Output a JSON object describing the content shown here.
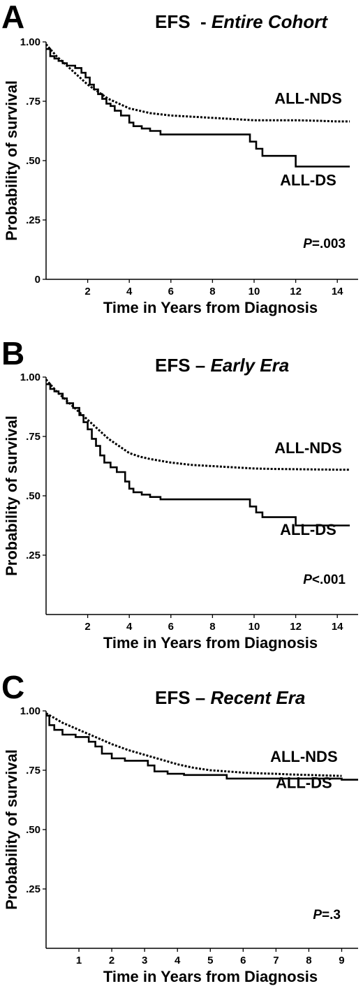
{
  "chart_data": [
    {
      "type": "line",
      "panel": "A",
      "title_prefix": "EFS  - ",
      "title_italic": "Entire Cohort",
      "xlabel": "Time in Years from Diagnosis",
      "ylabel": "Probability of survival",
      "xlim": [
        0,
        15
      ],
      "ylim": [
        0,
        1
      ],
      "x_ticks": [
        2,
        4,
        6,
        8,
        10,
        12,
        14
      ],
      "y_ticks": [
        0,
        0.25,
        0.5,
        0.75,
        1.0
      ],
      "y_tick_labels": [
        "0",
        ".25",
        ".50",
        ".75",
        "1.00"
      ],
      "p_prefix": "P",
      "p_rest": "=.003",
      "series": [
        {
          "name": "ALL-NDS",
          "style": "dotted",
          "label_x": 12.6,
          "label_y": 0.74,
          "x": [
            0,
            0.5,
            1,
            1.5,
            2,
            2.5,
            3,
            3.5,
            4,
            4.5,
            5,
            6,
            7,
            8,
            9,
            10,
            11,
            12,
            13,
            14,
            14.6
          ],
          "y": [
            0.99,
            0.94,
            0.9,
            0.86,
            0.82,
            0.79,
            0.76,
            0.74,
            0.72,
            0.71,
            0.7,
            0.69,
            0.685,
            0.68,
            0.675,
            0.67,
            0.67,
            0.67,
            0.668,
            0.665,
            0.665
          ]
        },
        {
          "name": "ALL-DS",
          "style": "solid",
          "label_x": 12.6,
          "label_y": 0.395,
          "step": true,
          "x": [
            0,
            0.2,
            0.4,
            0.6,
            0.8,
            1.0,
            1.4,
            1.7,
            1.9,
            2.1,
            2.3,
            2.5,
            2.7,
            2.9,
            3.1,
            3.3,
            3.6,
            4.0,
            4.2,
            4.6,
            5.0,
            5.5,
            9.8,
            10.1,
            10.4,
            12.0,
            14.6
          ],
          "y": [
            0.97,
            0.94,
            0.93,
            0.92,
            0.91,
            0.9,
            0.89,
            0.87,
            0.85,
            0.82,
            0.8,
            0.78,
            0.76,
            0.74,
            0.73,
            0.71,
            0.69,
            0.66,
            0.645,
            0.635,
            0.625,
            0.61,
            0.58,
            0.55,
            0.52,
            0.475,
            0.475
          ]
        }
      ]
    },
    {
      "type": "line",
      "panel": "B",
      "title_prefix": "EFS – ",
      "title_italic": "Early Era",
      "xlabel": "Time in Years from Diagnosis",
      "ylabel": "Probability of survival",
      "xlim": [
        0,
        15
      ],
      "ylim": [
        0,
        1
      ],
      "x_ticks": [
        2,
        4,
        6,
        8,
        10,
        12,
        14
      ],
      "y_ticks": [
        0.25,
        0.5,
        0.75,
        1.0
      ],
      "y_tick_labels": [
        ".25",
        ".50",
        ".75",
        "1.00"
      ],
      "p_prefix": "P",
      "p_rest": "<.001",
      "series": [
        {
          "name": "ALL-NDS",
          "style": "dotted",
          "label_x": 12.6,
          "label_y": 0.68,
          "x": [
            0,
            0.5,
            1,
            1.5,
            2,
            2.5,
            3,
            3.5,
            4,
            4.5,
            5,
            6,
            7,
            8,
            9,
            10,
            11,
            12,
            13,
            14,
            14.6
          ],
          "y": [
            0.99,
            0.94,
            0.9,
            0.86,
            0.82,
            0.78,
            0.74,
            0.71,
            0.68,
            0.665,
            0.655,
            0.64,
            0.63,
            0.625,
            0.62,
            0.615,
            0.613,
            0.612,
            0.611,
            0.61,
            0.61
          ]
        },
        {
          "name": "ALL-DS",
          "style": "solid",
          "label_x": 12.6,
          "label_y": 0.335,
          "step": true,
          "x": [
            0,
            0.2,
            0.4,
            0.6,
            0.8,
            1.0,
            1.3,
            1.6,
            1.8,
            2.0,
            2.2,
            2.4,
            2.6,
            2.8,
            3.1,
            3.4,
            3.8,
            4.0,
            4.2,
            4.6,
            5.0,
            5.5,
            9.8,
            10.1,
            10.4,
            12.0,
            14.6
          ],
          "y": [
            0.97,
            0.95,
            0.94,
            0.93,
            0.91,
            0.89,
            0.87,
            0.84,
            0.81,
            0.78,
            0.74,
            0.71,
            0.67,
            0.64,
            0.62,
            0.6,
            0.56,
            0.53,
            0.515,
            0.505,
            0.495,
            0.485,
            0.455,
            0.43,
            0.41,
            0.375,
            0.375
          ]
        }
      ]
    },
    {
      "type": "line",
      "panel": "C",
      "title_prefix": "EFS – ",
      "title_italic": "Recent Era",
      "xlabel": "Time in Years from Diagnosis",
      "ylabel": "Probability of survival",
      "xlim": [
        0,
        9.5
      ],
      "ylim": [
        0,
        1
      ],
      "x_ticks": [
        1,
        2,
        3,
        4,
        5,
        6,
        7,
        8,
        9
      ],
      "y_ticks": [
        0.25,
        0.5,
        0.75,
        1.0
      ],
      "y_tick_labels": [
        ".25",
        ".50",
        ".75",
        "1.00"
      ],
      "p_prefix": "P",
      "p_rest": "=.3",
      "series": [
        {
          "name": "ALL-NDS",
          "style": "dotted",
          "label_x": 7.85,
          "label_y": 0.785,
          "x": [
            0,
            0.5,
            1,
            1.5,
            2,
            2.5,
            3,
            3.5,
            4,
            4.5,
            5,
            5.5,
            6,
            6.5,
            7,
            7.5,
            8,
            8.5,
            9
          ],
          "y": [
            0.99,
            0.95,
            0.92,
            0.89,
            0.86,
            0.835,
            0.815,
            0.795,
            0.775,
            0.76,
            0.75,
            0.745,
            0.74,
            0.737,
            0.735,
            0.732,
            0.73,
            0.728,
            0.726
          ]
        },
        {
          "name": "ALL-DS",
          "style": "solid",
          "label_x": 7.85,
          "label_y": 0.675,
          "step": true,
          "x": [
            0,
            0.1,
            0.25,
            0.5,
            0.9,
            1.3,
            1.5,
            1.7,
            2.0,
            2.4,
            2.8,
            3.1,
            3.3,
            3.7,
            4.2,
            5.5,
            9.0,
            9.5
          ],
          "y": [
            0.98,
            0.94,
            0.92,
            0.9,
            0.89,
            0.87,
            0.85,
            0.82,
            0.8,
            0.79,
            0.79,
            0.77,
            0.745,
            0.735,
            0.73,
            0.715,
            0.71,
            0.71
          ]
        }
      ]
    }
  ]
}
